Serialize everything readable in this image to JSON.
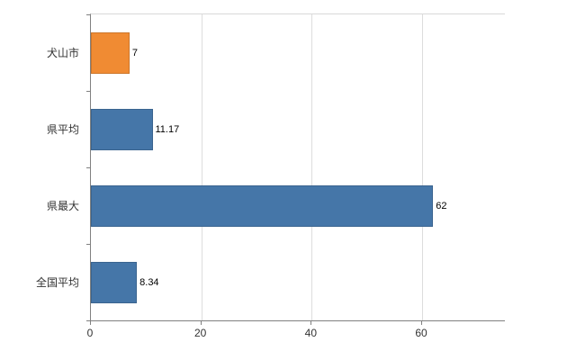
{
  "chart_data": {
    "type": "bar",
    "orientation": "horizontal",
    "title": "",
    "xlabel": "",
    "ylabel": "",
    "categories": [
      "犬山市",
      "県平均",
      "県最大",
      "全国平均"
    ],
    "values": [
      7,
      11.17,
      62,
      8.34
    ],
    "value_labels": [
      "7",
      "11.17",
      "62",
      "8.34"
    ],
    "bar_colors": [
      "#f08b33",
      "#4576a8",
      "#4576a8",
      "#4576a8"
    ],
    "xlim": [
      0,
      75
    ],
    "x_ticks": [
      0,
      20,
      40,
      60
    ],
    "x_tick_labels": [
      "0",
      "20",
      "40",
      "60"
    ],
    "grid": true,
    "legend": false,
    "colors": {
      "grid": "#dddddd",
      "axis": "#808080",
      "category_label": "#333333",
      "value_label": "#000000",
      "background": "#ffffff"
    }
  }
}
